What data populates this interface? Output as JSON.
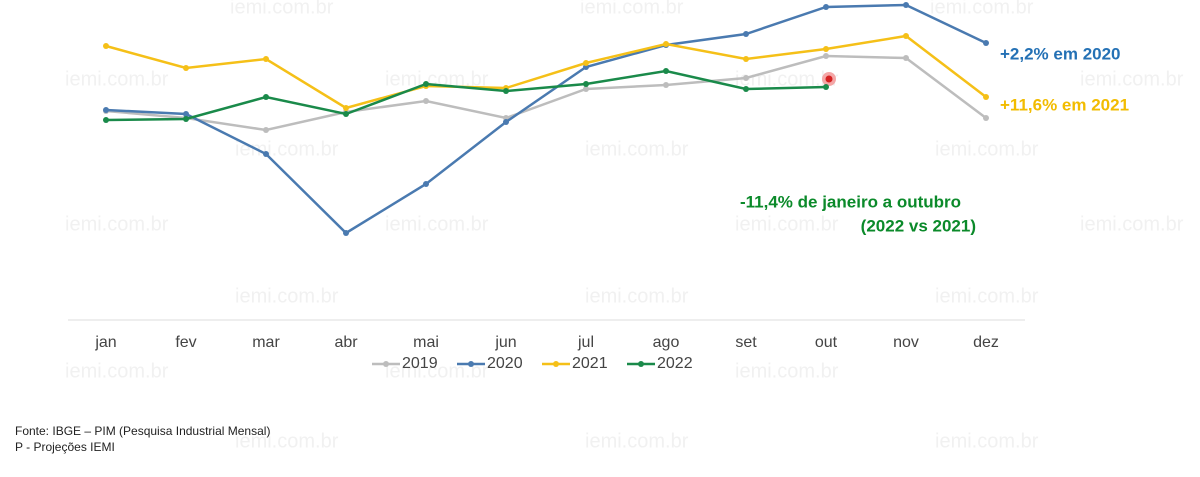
{
  "chart_data": {
    "type": "line",
    "watermark": "iemi.com.br",
    "categories": [
      "jan",
      "fev",
      "mar",
      "abr",
      "mai",
      "jun",
      "jul",
      "ago",
      "set",
      "out",
      "nov",
      "dez"
    ],
    "series": [
      {
        "name": "2019",
        "color": "#bdbdbd",
        "values": [
          209,
          202,
          190,
          208,
          219,
          202,
          231,
          235,
          242,
          264,
          262,
          202
        ]
      },
      {
        "name": "2020",
        "color": "#4a7ab0",
        "values": [
          210,
          206,
          166,
          87,
          136,
          198,
          253,
          275,
          286,
          313,
          315,
          277
        ]
      },
      {
        "name": "2021",
        "color": "#f5c018",
        "values": [
          274,
          252,
          261,
          212,
          234,
          232,
          257,
          276,
          261,
          271,
          284,
          223
        ]
      },
      {
        "name": "2022",
        "color": "#1a8a4a",
        "values": [
          200,
          201,
          223,
          206,
          236,
          229,
          236,
          249,
          231,
          233,
          null,
          null
        ]
      }
    ],
    "ylim": [
      0,
      320
    ],
    "annotations": [
      {
        "text": "+2,2% em 2020",
        "color": "#2471b5"
      },
      {
        "text": "+11,6% em 2021",
        "color": "#f2bc00"
      },
      {
        "text": "-11,4% de janeiro a outubro",
        "color": "#0b8a2a"
      },
      {
        "text": "(2022 vs 2021)",
        "color": "#0b8a2a"
      }
    ],
    "footnotes": [
      "Fonte: IBGE – PIM (Pesquisa Industrial Mensal)",
      "P - Projeções IEMI"
    ]
  }
}
